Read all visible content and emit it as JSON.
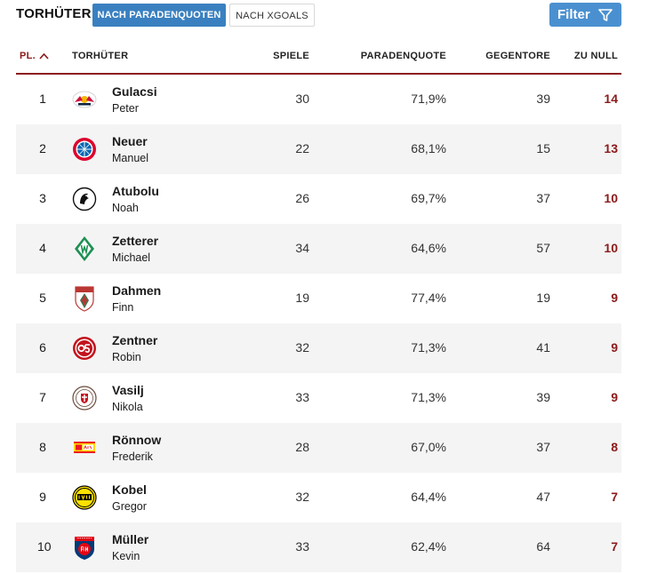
{
  "header": {
    "title": "TORHÜTER",
    "tabs": [
      {
        "label": "NACH PARADENQUOTEN",
        "active": true
      },
      {
        "label": "NACH XGOALS",
        "active": false
      }
    ],
    "filter_label": "Filter",
    "filter_icon": "funnel-icon"
  },
  "colors": {
    "accent_blue": "#3a80c0",
    "accent_red": "#8b1a1a"
  },
  "columns": {
    "pl": "PL.",
    "sort_icon": "chevron-up-icon",
    "torhueter": "TORHÜTER",
    "spiele": "SPIELE",
    "paradenquote": "PARADENQUOTE",
    "gegentore": "GEGENTORE",
    "zu_null": "ZU NULL"
  },
  "rows": [
    {
      "pl": "1",
      "first": "Gulacsi",
      "last": "Peter",
      "spiele": "30",
      "quote": "71,9%",
      "gegentore": "39",
      "zu_null": "14",
      "club": "rb-leipzig-logo"
    },
    {
      "pl": "2",
      "first": "Neuer",
      "last": "Manuel",
      "spiele": "22",
      "quote": "68,1%",
      "gegentore": "15",
      "zu_null": "13",
      "club": "fc-bayern-logo"
    },
    {
      "pl": "3",
      "first": "Atubolu",
      "last": "Noah",
      "spiele": "26",
      "quote": "69,7%",
      "gegentore": "37",
      "zu_null": "10",
      "club": "sc-freiburg-logo"
    },
    {
      "pl": "4",
      "first": "Zetterer",
      "last": "Michael",
      "spiele": "34",
      "quote": "64,6%",
      "gegentore": "57",
      "zu_null": "10",
      "club": "werder-bremen-logo"
    },
    {
      "pl": "5",
      "first": "Dahmen",
      "last": "Finn",
      "spiele": "19",
      "quote": "77,4%",
      "gegentore": "19",
      "zu_null": "9",
      "club": "fc-augsburg-logo"
    },
    {
      "pl": "6",
      "first": "Zentner",
      "last": "Robin",
      "spiele": "32",
      "quote": "71,3%",
      "gegentore": "41",
      "zu_null": "9",
      "club": "mainz-05-logo"
    },
    {
      "pl": "7",
      "first": "Vasilj",
      "last": "Nikola",
      "spiele": "33",
      "quote": "71,3%",
      "gegentore": "39",
      "zu_null": "9",
      "club": "st-pauli-logo"
    },
    {
      "pl": "8",
      "first": "Rönnow",
      "last": "Frederik",
      "spiele": "28",
      "quote": "67,0%",
      "gegentore": "37",
      "zu_null": "8",
      "club": "union-berlin-logo"
    },
    {
      "pl": "9",
      "first": "Kobel",
      "last": "Gregor",
      "spiele": "32",
      "quote": "64,4%",
      "gegentore": "47",
      "zu_null": "7",
      "club": "bvb-logo"
    },
    {
      "pl": "10",
      "first": "Müller",
      "last": "Kevin",
      "spiele": "33",
      "quote": "62,4%",
      "gegentore": "64",
      "zu_null": "7",
      "club": "heidenheim-logo"
    }
  ]
}
